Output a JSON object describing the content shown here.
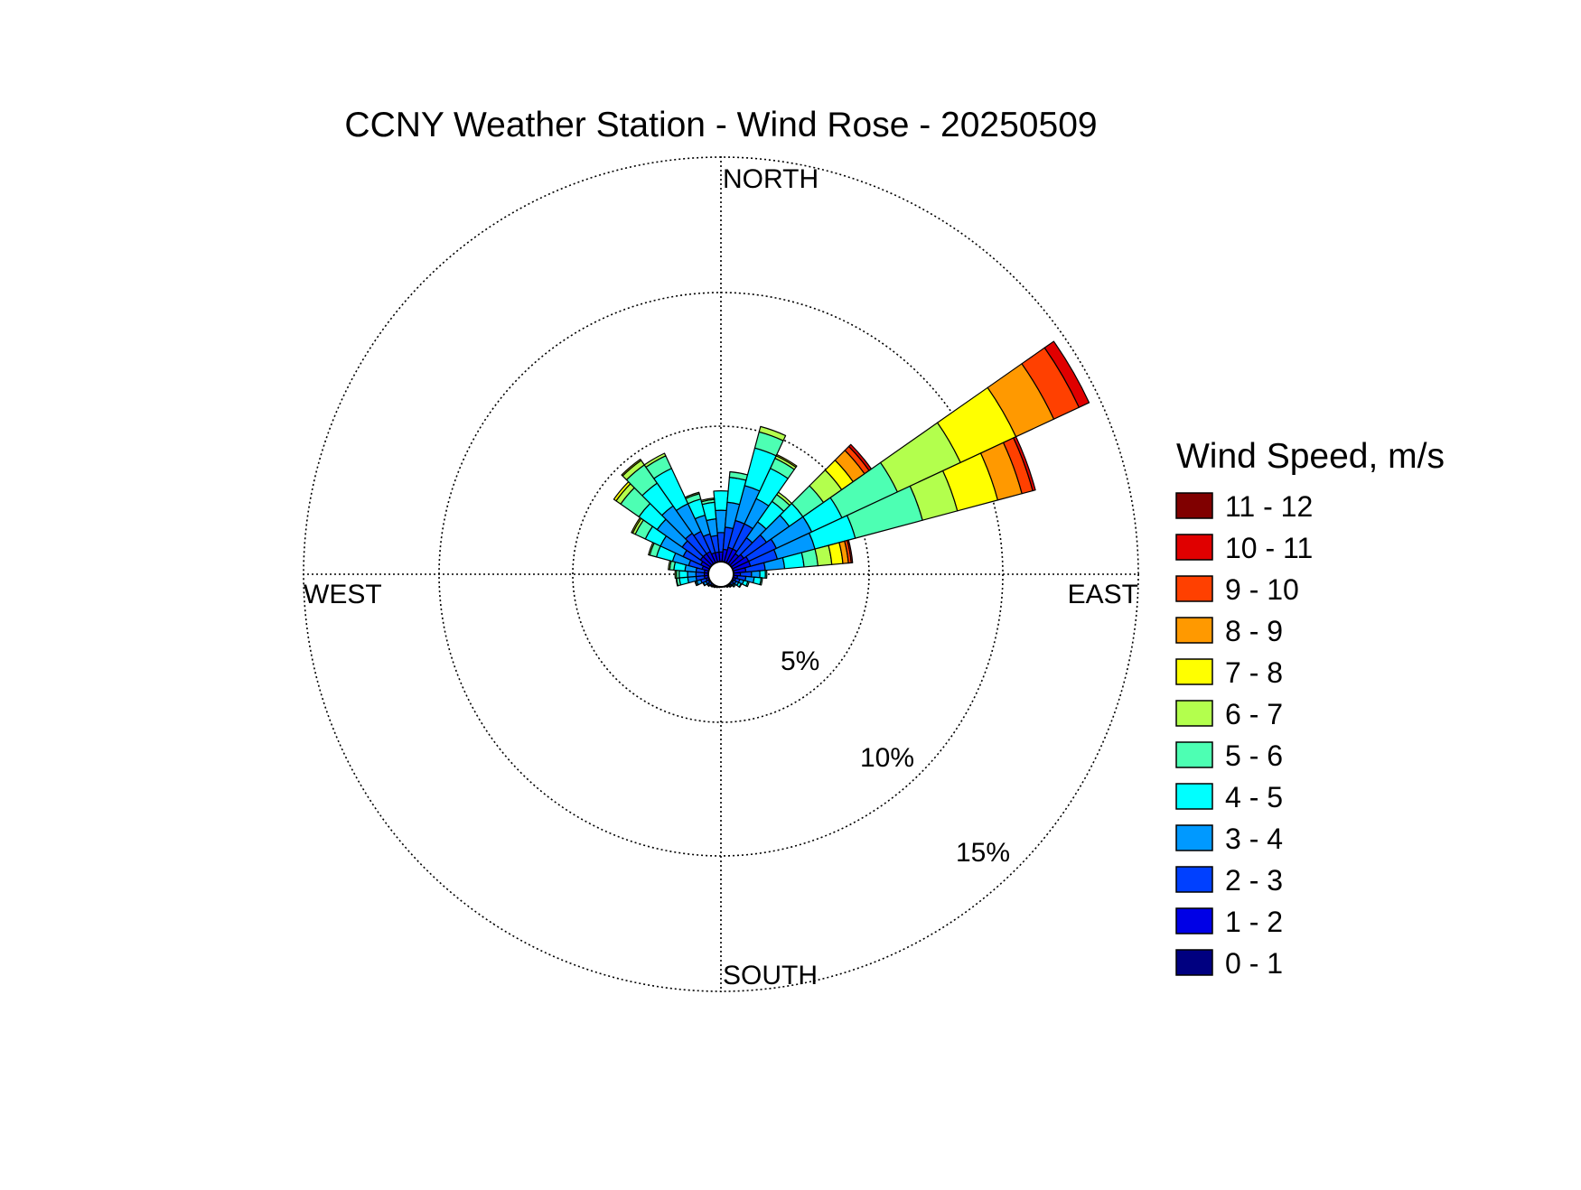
{
  "chart_data": {
    "type": "wind-rose",
    "title": "CCNY Weather Station - Wind Rose - 20250509",
    "directions": {
      "north": "NORTH",
      "south": "SOUTH",
      "east": "EAST",
      "west": "WEST"
    },
    "rings": [
      {
        "value": 5,
        "label": "5%"
      },
      {
        "value": 10,
        "label": "10%"
      },
      {
        "value": 15,
        "label": "15%"
      }
    ],
    "r_max_percent": 15.5,
    "legend": {
      "title": "Wind Speed, m/s",
      "bins": [
        {
          "label": "11 - 12",
          "color": "#800000"
        },
        {
          "label": "10 - 11",
          "color": "#e00000"
        },
        {
          "label": "9 - 10",
          "color": "#ff4000"
        },
        {
          "label": "8 - 9",
          "color": "#ff9900"
        },
        {
          "label": "7 - 8",
          "color": "#ffff00"
        },
        {
          "label": "6 - 7",
          "color": "#b3ff4d"
        },
        {
          "label": "5 - 6",
          "color": "#4dffb3"
        },
        {
          "label": "4 - 5",
          "color": "#00ffff"
        },
        {
          "label": "3 - 4",
          "color": "#0099ff"
        },
        {
          "label": "2 - 3",
          "color": "#0040ff"
        },
        {
          "label": "1 - 2",
          "color": "#0000e6"
        },
        {
          "label": "0 - 1",
          "color": "#000080"
        }
      ]
    },
    "speed_bins_low_to_high": [
      "0 - 1",
      "1 - 2",
      "2 - 3",
      "3 - 4",
      "4 - 5",
      "5 - 6",
      "6 - 7",
      "7 - 8",
      "8 - 9",
      "9 - 10",
      "10 - 11",
      "11 - 12"
    ],
    "sector_width_deg": 10,
    "sectors": [
      {
        "direction_deg": 0,
        "cumulative_percent": [
          0.35,
          0.8,
          1.5,
          2.3,
          3.0,
          3.0,
          3.0,
          3.0,
          3.0,
          3.0,
          3.0,
          3.0
        ]
      },
      {
        "direction_deg": 10,
        "cumulative_percent": [
          0.35,
          0.9,
          1.7,
          2.6,
          3.5,
          3.7,
          3.7,
          3.7,
          3.7,
          3.7,
          3.7,
          3.7
        ]
      },
      {
        "direction_deg": 20,
        "cumulative_percent": [
          0.35,
          1.0,
          2.0,
          3.3,
          4.7,
          5.3,
          5.5,
          5.5,
          5.5,
          5.5,
          5.5,
          5.5
        ]
      },
      {
        "direction_deg": 30,
        "cumulative_percent": [
          0.35,
          1.0,
          2.0,
          3.0,
          4.2,
          4.6,
          4.7,
          4.75,
          4.75,
          4.75,
          4.75,
          4.75
        ]
      },
      {
        "direction_deg": 40,
        "cumulative_percent": [
          0.35,
          0.9,
          1.6,
          2.3,
          3.2,
          3.5,
          3.6,
          3.6,
          3.6,
          3.6,
          3.6,
          3.6
        ]
      },
      {
        "direction_deg": 50,
        "cumulative_percent": [
          0.35,
          1.0,
          2.0,
          3.0,
          3.6,
          4.5,
          5.3,
          5.8,
          6.3,
          6.5,
          6.6,
          6.6
        ]
      },
      {
        "direction_deg": 60,
        "cumulative_percent": [
          0.35,
          1.1,
          2.2,
          3.6,
          4.8,
          7.0,
          9.5,
          11.7,
          13.2,
          14.2,
          14.6,
          14.6
        ]
      },
      {
        "direction_deg": 70,
        "cumulative_percent": [
          0.35,
          1.1,
          2.1,
          3.5,
          5.0,
          7.5,
          8.8,
          10.3,
          11.2,
          11.6,
          11.7,
          11.7
        ]
      },
      {
        "direction_deg": 80,
        "cumulative_percent": [
          0.35,
          0.9,
          1.6,
          2.3,
          3.0,
          3.5,
          4.0,
          4.4,
          4.6,
          4.7,
          4.75,
          4.75
        ]
      },
      {
        "direction_deg": 90,
        "cumulative_percent": [
          0.35,
          0.7,
          1.1,
          1.4,
          1.6,
          1.65,
          1.65,
          1.65,
          1.65,
          1.65,
          1.65,
          1.65
        ]
      },
      {
        "direction_deg": 100,
        "cumulative_percent": [
          0.35,
          0.6,
          0.9,
          1.2,
          1.45,
          1.5,
          1.5,
          1.5,
          1.5,
          1.5,
          1.5,
          1.5
        ]
      },
      {
        "direction_deg": 110,
        "cumulative_percent": [
          0.35,
          0.55,
          0.7,
          0.85,
          1.0,
          1.05,
          1.05,
          1.05,
          1.05,
          1.05,
          1.05,
          1.05
        ]
      },
      {
        "direction_deg": 120,
        "cumulative_percent": [
          0.35,
          0.5,
          0.6,
          0.7,
          0.8,
          0.82,
          0.82,
          0.82,
          0.82,
          0.82,
          0.82,
          0.82
        ]
      },
      {
        "direction_deg": 130,
        "cumulative_percent": [
          0.35,
          0.45,
          0.55,
          0.6,
          0.65,
          0.65,
          0.65,
          0.65,
          0.65,
          0.65,
          0.65,
          0.65
        ]
      },
      {
        "direction_deg": 140,
        "cumulative_percent": [
          0.35,
          0.45,
          0.5,
          0.55,
          0.57,
          0.57,
          0.57,
          0.57,
          0.57,
          0.57,
          0.57,
          0.57
        ]
      },
      {
        "direction_deg": 150,
        "cumulative_percent": [
          0.35,
          0.42,
          0.47,
          0.5,
          0.52,
          0.52,
          0.52,
          0.52,
          0.52,
          0.52,
          0.52,
          0.52
        ]
      },
      {
        "direction_deg": 160,
        "cumulative_percent": [
          0.35,
          0.42,
          0.46,
          0.48,
          0.48,
          0.48,
          0.48,
          0.48,
          0.48,
          0.48,
          0.48,
          0.48
        ]
      },
      {
        "direction_deg": 170,
        "cumulative_percent": [
          0.35,
          0.4,
          0.44,
          0.46,
          0.46,
          0.46,
          0.46,
          0.46,
          0.46,
          0.46,
          0.46,
          0.46
        ]
      },
      {
        "direction_deg": 180,
        "cumulative_percent": [
          0.35,
          0.42,
          0.45,
          0.47,
          0.47,
          0.47,
          0.47,
          0.47,
          0.47,
          0.47,
          0.47,
          0.47
        ]
      },
      {
        "direction_deg": 190,
        "cumulative_percent": [
          0.35,
          0.42,
          0.46,
          0.48,
          0.48,
          0.48,
          0.48,
          0.48,
          0.48,
          0.48,
          0.48,
          0.48
        ]
      },
      {
        "direction_deg": 200,
        "cumulative_percent": [
          0.35,
          0.43,
          0.48,
          0.5,
          0.5,
          0.5,
          0.5,
          0.5,
          0.5,
          0.5,
          0.5,
          0.5
        ]
      },
      {
        "direction_deg": 210,
        "cumulative_percent": [
          0.35,
          0.44,
          0.5,
          0.52,
          0.53,
          0.53,
          0.53,
          0.53,
          0.53,
          0.53,
          0.53,
          0.53
        ]
      },
      {
        "direction_deg": 220,
        "cumulative_percent": [
          0.35,
          0.45,
          0.52,
          0.55,
          0.56,
          0.56,
          0.56,
          0.56,
          0.56,
          0.56,
          0.56,
          0.56
        ]
      },
      {
        "direction_deg": 230,
        "cumulative_percent": [
          0.35,
          0.46,
          0.55,
          0.6,
          0.62,
          0.62,
          0.62,
          0.62,
          0.62,
          0.62,
          0.62,
          0.62
        ]
      },
      {
        "direction_deg": 240,
        "cumulative_percent": [
          0.35,
          0.5,
          0.6,
          0.7,
          0.72,
          0.72,
          0.72,
          0.72,
          0.72,
          0.72,
          0.72,
          0.72
        ]
      },
      {
        "direction_deg": 250,
        "cumulative_percent": [
          0.35,
          0.55,
          0.75,
          0.9,
          0.95,
          0.97,
          0.97,
          0.97,
          0.97,
          0.97,
          0.97,
          0.97
        ]
      },
      {
        "direction_deg": 260,
        "cumulative_percent": [
          0.35,
          0.6,
          0.9,
          1.2,
          1.5,
          1.6,
          1.62,
          1.62,
          1.62,
          1.62,
          1.62,
          1.62
        ]
      },
      {
        "direction_deg": 270,
        "cumulative_percent": [
          0.35,
          0.6,
          0.9,
          1.2,
          1.5,
          1.6,
          1.65,
          1.65,
          1.65,
          1.65,
          1.65,
          1.65
        ]
      },
      {
        "direction_deg": 280,
        "cumulative_percent": [
          0.35,
          0.6,
          0.9,
          1.3,
          1.7,
          1.85,
          1.9,
          1.9,
          1.9,
          1.9,
          1.9,
          1.9
        ]
      },
      {
        "direction_deg": 290,
        "cumulative_percent": [
          0.35,
          0.7,
          1.2,
          1.8,
          2.4,
          2.65,
          2.7,
          2.7,
          2.7,
          2.7,
          2.7,
          2.7
        ]
      },
      {
        "direction_deg": 300,
        "cumulative_percent": [
          0.35,
          0.8,
          1.5,
          2.4,
          3.0,
          3.4,
          3.5,
          3.55,
          3.55,
          3.55,
          3.55,
          3.55
        ]
      },
      {
        "direction_deg": 310,
        "cumulative_percent": [
          0.35,
          0.9,
          1.7,
          2.8,
          3.6,
          4.4,
          4.6,
          4.7,
          4.7,
          4.7,
          4.7,
          4.7
        ]
      },
      {
        "direction_deg": 320,
        "cumulative_percent": [
          0.35,
          0.9,
          1.8,
          3.0,
          4.0,
          4.8,
          5.0,
          5.05,
          5.05,
          5.05,
          5.05,
          5.05
        ]
      },
      {
        "direction_deg": 330,
        "cumulative_percent": [
          0.35,
          0.9,
          1.7,
          2.8,
          4.2,
          4.7,
          4.8,
          4.8,
          4.8,
          4.8,
          4.8,
          4.8
        ]
      },
      {
        "direction_deg": 340,
        "cumulative_percent": [
          0.35,
          0.8,
          1.5,
          2.2,
          2.8,
          3.0,
          3.05,
          3.05,
          3.05,
          3.05,
          3.05,
          3.05
        ]
      },
      {
        "direction_deg": 350,
        "cumulative_percent": [
          0.35,
          0.8,
          1.4,
          2.0,
          2.6,
          2.7,
          2.75,
          2.75,
          2.75,
          2.75,
          2.75,
          2.75
        ]
      }
    ]
  }
}
